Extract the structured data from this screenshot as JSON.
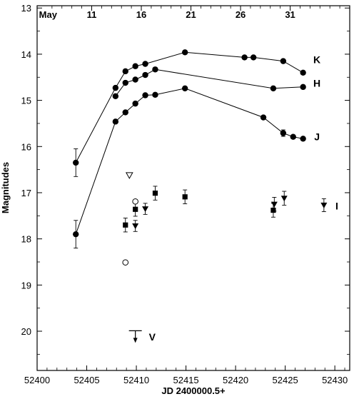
{
  "chart_data": {
    "type": "scatter",
    "xlabel": "JD 2400000.5+",
    "ylabel": "Magnitudes",
    "xlim": [
      52400,
      52431.5
    ],
    "ylim": [
      12.95,
      20.85
    ],
    "y_inverted": true,
    "x_ticks": [
      52400,
      52405,
      52410,
      52415,
      52420,
      52425,
      52430
    ],
    "y_ticks": [
      13,
      14,
      15,
      16,
      17,
      18,
      19,
      20
    ],
    "top_axis": {
      "month_label": "May",
      "month_label_x": 52401.1,
      "ticks": [
        {
          "label": "11",
          "x": 52405.5
        },
        {
          "label": "16",
          "x": 52410.5
        },
        {
          "label": "21",
          "x": 52415.5
        },
        {
          "label": "26",
          "x": 52420.5
        },
        {
          "label": "31",
          "x": 52425.5
        }
      ]
    },
    "series": [
      {
        "name": "K",
        "marker": "circle-filled",
        "connected": true,
        "label_x": 52428.2,
        "label_y": 14.12,
        "points": [
          {
            "x": 52403.9,
            "y": 16.35,
            "err": 0.3
          },
          {
            "x": 52407.9,
            "y": 14.73
          },
          {
            "x": 52408.9,
            "y": 14.37
          },
          {
            "x": 52409.9,
            "y": 14.26
          },
          {
            "x": 52410.9,
            "y": 14.21
          },
          {
            "x": 52414.9,
            "y": 13.96
          },
          {
            "x": 52420.9,
            "y": 14.07
          },
          {
            "x": 52421.8,
            "y": 14.07
          },
          {
            "x": 52424.8,
            "y": 14.15
          },
          {
            "x": 52426.8,
            "y": 14.4
          }
        ]
      },
      {
        "name": "H",
        "marker": "circle-filled",
        "connected": true,
        "label_x": 52428.2,
        "label_y": 14.63,
        "points": [
          {
            "x": 52407.9,
            "y": 14.91
          },
          {
            "x": 52408.9,
            "y": 14.62
          },
          {
            "x": 52409.9,
            "y": 14.55
          },
          {
            "x": 52410.9,
            "y": 14.45
          },
          {
            "x": 52411.9,
            "y": 14.33
          },
          {
            "x": 52423.8,
            "y": 14.74
          },
          {
            "x": 52426.8,
            "y": 14.71
          }
        ]
      },
      {
        "name": "J",
        "marker": "circle-filled",
        "connected": true,
        "label_x": 52428.2,
        "label_y": 15.79,
        "points": [
          {
            "x": 52403.9,
            "y": 17.9,
            "err": 0.3
          },
          {
            "x": 52407.9,
            "y": 15.46
          },
          {
            "x": 52408.9,
            "y": 15.26
          },
          {
            "x": 52409.9,
            "y": 15.07
          },
          {
            "x": 52410.9,
            "y": 14.89
          },
          {
            "x": 52411.9,
            "y": 14.88
          },
          {
            "x": 52414.9,
            "y": 14.74
          },
          {
            "x": 52422.8,
            "y": 15.37
          },
          {
            "x": 52424.8,
            "y": 15.71,
            "err": 0.07
          },
          {
            "x": 52425.8,
            "y": 15.79
          },
          {
            "x": 52426.8,
            "y": 15.83
          }
        ]
      },
      {
        "name": "I",
        "marker": "triangle-down-filled",
        "connected": false,
        "label_x": 52430.2,
        "label_y": 17.29,
        "points": [
          {
            "x": 52409.9,
            "y": 17.72,
            "err": 0.12
          },
          {
            "x": 52410.9,
            "y": 17.35,
            "err": 0.12
          },
          {
            "x": 52423.9,
            "y": 17.25,
            "err": 0.15
          },
          {
            "x": 52424.9,
            "y": 17.12,
            "err": 0.15
          },
          {
            "x": 52428.9,
            "y": 17.27,
            "err": 0.14
          }
        ]
      },
      {
        "marker": "square-filled",
        "connected": false,
        "points": [
          {
            "x": 52408.9,
            "y": 17.7,
            "err": 0.15
          },
          {
            "x": 52409.9,
            "y": 17.36,
            "err": 0.15
          },
          {
            "x": 52411.9,
            "y": 17.01,
            "err": 0.15
          },
          {
            "x": 52414.9,
            "y": 17.09,
            "err": 0.15
          },
          {
            "x": 52423.8,
            "y": 17.38,
            "err": 0.15
          }
        ]
      },
      {
        "marker": "triangle-down-open",
        "connected": false,
        "points": [
          {
            "x": 52409.3,
            "y": 16.62
          }
        ]
      },
      {
        "marker": "circle-open",
        "connected": false,
        "points": [
          {
            "x": 52408.9,
            "y": 18.51
          },
          {
            "x": 52409.9,
            "y": 17.19
          }
        ]
      },
      {
        "name": "V",
        "marker": "upper-limit",
        "connected": false,
        "label_x": 52411.6,
        "label_y": 20.12,
        "points": [
          {
            "x": 52409.9,
            "y": 19.99
          }
        ]
      }
    ],
    "grid": false,
    "legend": "inline labels at right"
  }
}
